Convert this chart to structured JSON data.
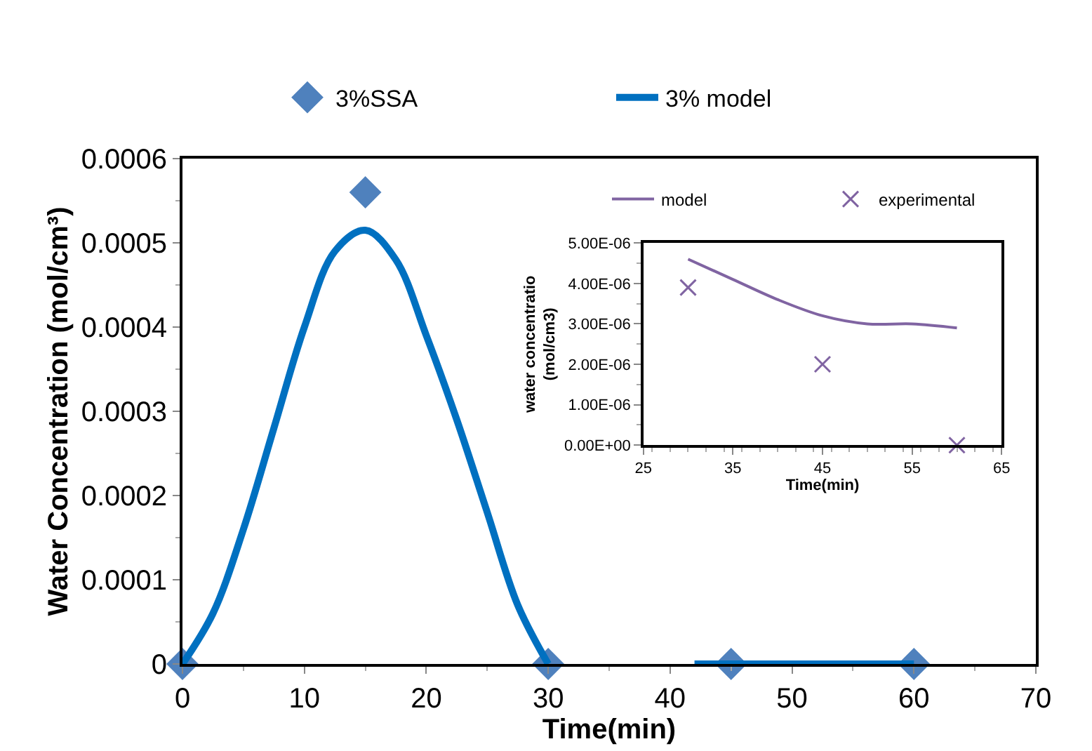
{
  "chart_data": [
    {
      "type": "scatter",
      "xlabel": "Time(min)",
      "ylabel": "Water Concentration (mol/cm³)",
      "xlim": [
        0,
        70
      ],
      "xticks": [
        0,
        10,
        20,
        30,
        40,
        50,
        60,
        70
      ],
      "ylim": [
        0,
        0.0006
      ],
      "yticks": [
        0,
        0.0001,
        0.0002,
        0.0003,
        0.0004,
        0.0005,
        0.0006
      ],
      "legend": "top",
      "series": [
        {
          "name": "3%SSA",
          "marker": "diamond",
          "color": "#4f81bd",
          "x": [
            0,
            15,
            30,
            45,
            60
          ],
          "values": [
            0,
            0.00056,
            0,
            0,
            0
          ]
        },
        {
          "name": "3% model",
          "type": "line",
          "marker": "none",
          "line_style": "solid",
          "color": "#0070c0",
          "x": [
            0,
            2.5,
            5,
            7.5,
            10,
            12.5,
            15,
            17.5,
            20,
            22.5,
            25,
            27.5,
            30,
            36,
            42,
            45,
            50,
            55,
            60
          ],
          "values": [
            0,
            6e-05,
            0.00016,
            0.00028,
            0.0004,
            0.00049,
            0.000515,
            0.00048,
            0.00039,
            0.00029,
            0.00018,
            7e-05,
            0,
            null,
            0,
            0,
            0,
            0,
            0
          ]
        }
      ]
    },
    {
      "type": "scatter",
      "xlabel": "Time(min)",
      "ylabel": "water concentratio\n(mol/cm3)",
      "xlim": [
        25,
        65
      ],
      "xticks": [
        25,
        35,
        45,
        55,
        65
      ],
      "ylim": [
        0,
        5e-06
      ],
      "yticks": [
        {
          "value": 0,
          "label": "0.00E+00"
        },
        {
          "value": 1e-06,
          "label": "1.00E-06"
        },
        {
          "value": 2e-06,
          "label": "2.00E-06"
        },
        {
          "value": 3e-06,
          "label": "3.00E-06"
        },
        {
          "value": 4e-06,
          "label": "4.00E-06"
        },
        {
          "value": 5e-06,
          "label": "5.00E-06"
        }
      ],
      "legend": "top",
      "series": [
        {
          "name": "model",
          "type": "line",
          "marker": "none",
          "line_style": "solid",
          "color": "#8064a2",
          "x": [
            30,
            35,
            40,
            45,
            50,
            55,
            60
          ],
          "values": [
            4.6e-06,
            4.1e-06,
            3.6e-06,
            3.2e-06,
            3e-06,
            3e-06,
            2.9e-06
          ]
        },
        {
          "name": "experimental",
          "marker": "cross",
          "color": "#8064a2",
          "x": [
            30,
            45,
            60
          ],
          "values": [
            3.9e-06,
            2e-06,
            0
          ]
        }
      ]
    }
  ]
}
